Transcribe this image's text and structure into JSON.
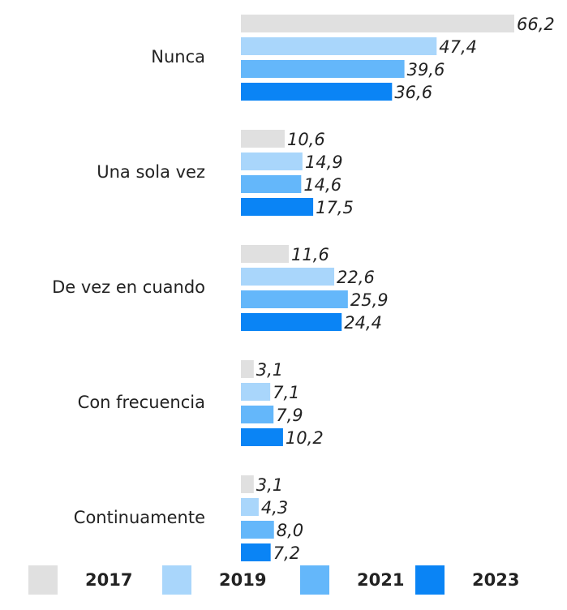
{
  "chart_data": {
    "type": "bar",
    "orientation": "horizontal",
    "categories": [
      "Nunca",
      "Una sola vez",
      "De vez en cuando",
      "Con frecuencia",
      "Continuamente"
    ],
    "series": [
      {
        "name": "2017",
        "color": "#e0e0e0",
        "values": [
          66.2,
          10.6,
          11.6,
          3.1,
          3.1
        ],
        "value_labels": [
          "66,2",
          "10,6",
          "11,6",
          "3,1",
          "3,1"
        ]
      },
      {
        "name": "2019",
        "color": "#a9d6fb",
        "values": [
          47.4,
          14.9,
          22.6,
          7.1,
          4.3
        ],
        "value_labels": [
          "47,4",
          "14,9",
          "22,6",
          "7,1",
          "4,3"
        ]
      },
      {
        "name": "2021",
        "color": "#64b7fa",
        "values": [
          39.6,
          14.6,
          25.9,
          7.9,
          8.0
        ],
        "value_labels": [
          "39,6",
          "14,6",
          "25,9",
          "7,9",
          "8,0"
        ]
      },
      {
        "name": "2023",
        "color": "#0a84f5",
        "values": [
          36.6,
          17.5,
          24.4,
          10.2,
          7.2
        ],
        "value_labels": [
          "36,6",
          "17,5",
          "24,4",
          "10,2",
          "7,2"
        ]
      }
    ],
    "legend": "bottom"
  }
}
